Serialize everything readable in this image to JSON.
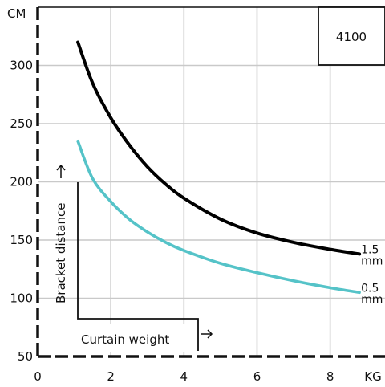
{
  "chart_data": {
    "type": "line",
    "model_label": "4100",
    "x_unit": "KG",
    "y_unit": "CM",
    "xlabel": "Curtain weight",
    "ylabel": "Bracket distance",
    "xlim": [
      0,
      9.5
    ],
    "ylim": [
      50,
      350
    ],
    "x_ticks": [
      "0",
      "2",
      "4",
      "6",
      "8"
    ],
    "y_ticks": [
      "50",
      "100",
      "150",
      "200",
      "250",
      "300"
    ],
    "grid": true,
    "series": [
      {
        "name_line1": "1.5",
        "name_line2": "mm",
        "color": "#000000",
        "x": [
          1.1,
          1.5,
          2,
          2.5,
          3,
          3.5,
          4,
          5,
          6,
          7,
          8,
          8.8
        ],
        "y": [
          320,
          285,
          255,
          232,
          213,
          198,
          186,
          168,
          156,
          148,
          142,
          138
        ]
      },
      {
        "name_line1": "0.5",
        "name_line2": "mm",
        "color": "#55c3c8",
        "x": [
          1.1,
          1.5,
          2,
          2.5,
          3,
          3.5,
          4,
          5,
          6,
          7,
          8,
          8.8
        ],
        "y": [
          235,
          203,
          183,
          168,
          157,
          148,
          141,
          130,
          122,
          115,
          109,
          105
        ]
      }
    ]
  }
}
